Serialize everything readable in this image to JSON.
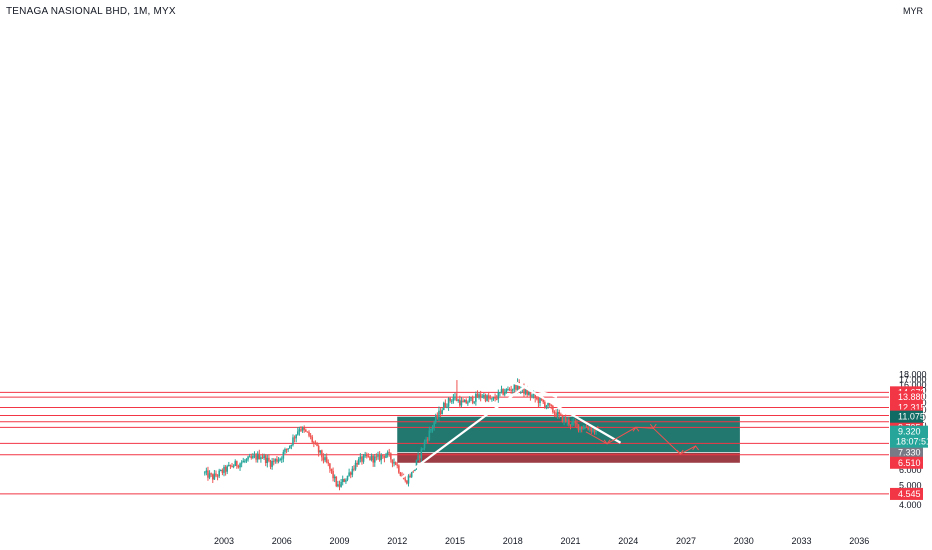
{
  "header": {
    "title": "TENAGA NASIONAL BHD, 1M, MYX",
    "currency": "MYR"
  },
  "colors": {
    "up": "#26a69a",
    "down": "#ef5350",
    "level": "#f23645",
    "profit_zone": "#0f6b63",
    "loss_zone": "#8b1a24",
    "trendline": "#ffffff",
    "axis_bg": "#ffffff",
    "price_now": "#26a69a",
    "stop_tag": "#787b86"
  },
  "chart_data": {
    "type": "candlestick",
    "y_scale": "log",
    "ylim": [
      3.6,
      18.3
    ],
    "x_ticks": [
      "2003",
      "2006",
      "2009",
      "2012",
      "2015",
      "2018",
      "2021",
      "2024",
      "2027",
      "2030",
      "2033",
      "2036"
    ],
    "y_ticks": [
      "4.000",
      "5.000",
      "6.000",
      "7.000",
      "8.000",
      "9.000",
      "10.000",
      "11.000",
      "12.000",
      "13.000",
      "14.000",
      "15.000",
      "16.000",
      "17.000",
      "18.000"
    ],
    "levels": [
      "14.670",
      "13.880",
      "12.315",
      "11.235",
      "10.445",
      "9.795",
      "8.140",
      "7.140",
      "4.545"
    ],
    "price_tags": {
      "current": {
        "value": "9.320",
        "countdown": "18:07:51"
      },
      "target": "11.075",
      "entry": "7.330",
      "stop": "6.510"
    },
    "position": {
      "target": 11.075,
      "entry": 7.33,
      "stop": 6.51,
      "x_start": 2012.0,
      "x_end": 2029.8
    },
    "trendlines": [
      {
        "x": [
          2011.5,
          2018.9
        ],
        "y": [
          4.85,
          16.4
        ]
      },
      {
        "x": [
          2018.2,
          2023.6
        ],
        "y": [
          16.4,
          8.2
        ]
      },
      {
        "x": [
          2018.0,
          2020.3
        ],
        "y": [
          16.4,
          13.9
        ]
      }
    ],
    "projection": [
      {
        "x": 2022.9,
        "y": 8.1,
        "up": false
      },
      {
        "x": 2024.4,
        "y": 9.8,
        "up": true
      },
      {
        "x": 2025.3,
        "y": 9.7,
        "up": false
      },
      {
        "x": 2026.7,
        "y": 7.2,
        "up": false
      },
      {
        "x": 2027.5,
        "y": 7.9,
        "up": true
      }
    ],
    "anchors": [
      [
        2002.0,
        5.8
      ],
      [
        2002.5,
        5.5
      ],
      [
        2003.5,
        6.3
      ],
      [
        2004.5,
        6.8
      ],
      [
        2005.0,
        7.1
      ],
      [
        2005.5,
        6.5
      ],
      [
        2006.0,
        6.9
      ],
      [
        2006.5,
        8.0
      ],
      [
        2007.0,
        9.8
      ],
      [
        2007.5,
        8.9
      ],
      [
        2008.0,
        7.4
      ],
      [
        2008.5,
        6.3
      ],
      [
        2009.0,
        4.9
      ],
      [
        2009.5,
        5.6
      ],
      [
        2010.0,
        6.6
      ],
      [
        2010.5,
        6.9
      ],
      [
        2011.0,
        6.8
      ],
      [
        2011.5,
        7.2
      ],
      [
        2012.0,
        6.5
      ],
      [
        2012.5,
        5.2
      ],
      [
        2013.0,
        6.2
      ],
      [
        2013.5,
        8.2
      ],
      [
        2014.0,
        10.4
      ],
      [
        2014.5,
        12.6
      ],
      [
        2015.0,
        13.9
      ],
      [
        2015.5,
        12.8
      ],
      [
        2016.0,
        13.6
      ],
      [
        2016.5,
        14.2
      ],
      [
        2017.0,
        13.3
      ],
      [
        2017.5,
        14.6
      ],
      [
        2018.0,
        15.3
      ],
      [
        2018.3,
        15.9
      ],
      [
        2018.8,
        14.6
      ],
      [
        2019.3,
        13.6
      ],
      [
        2019.8,
        12.8
      ],
      [
        2020.2,
        11.8
      ],
      [
        2020.6,
        10.9
      ],
      [
        2021.0,
        10.4
      ],
      [
        2021.5,
        9.9
      ],
      [
        2022.0,
        9.8
      ],
      [
        2022.5,
        9.3
      ]
    ]
  }
}
